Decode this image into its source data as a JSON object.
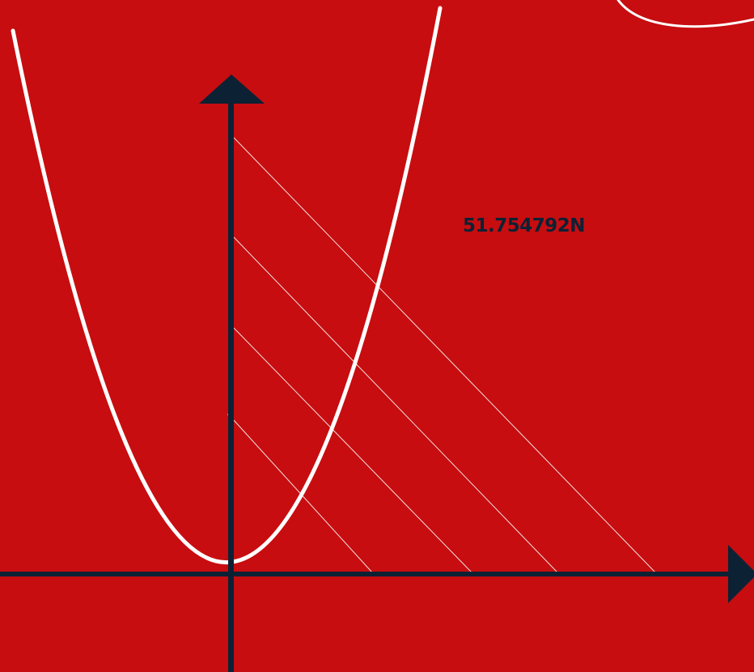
{
  "colors": {
    "background": "#c70d10",
    "axis": "#0d2134",
    "curve": "#ffffff",
    "hatch": "#f3dede"
  },
  "icons": {
    "y_axis_arrow": "triangle-up-icon",
    "x_axis_arrow": "triangle-right-icon"
  },
  "label": {
    "coordinate": "51.754792N"
  },
  "graph": {
    "curve": "parabola",
    "hatch_lines": 4
  }
}
